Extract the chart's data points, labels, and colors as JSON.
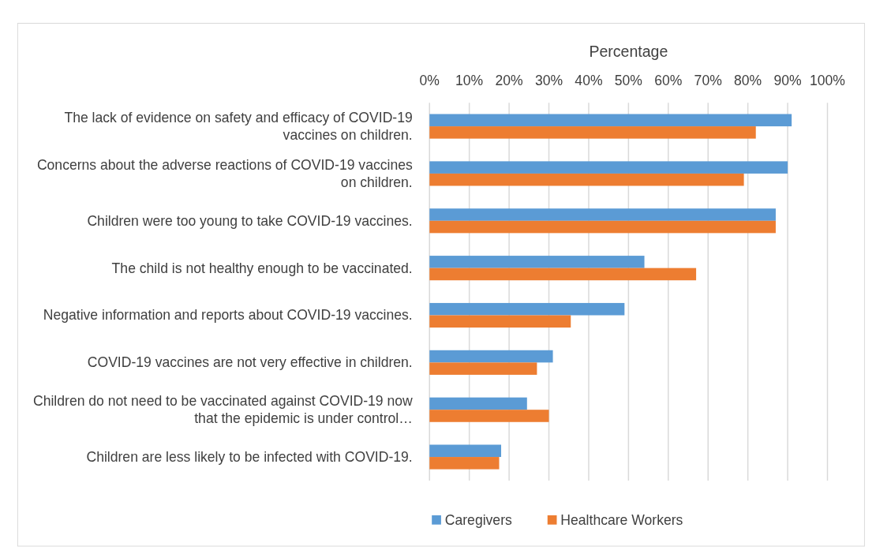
{
  "chart_data": {
    "type": "bar",
    "orientation": "horizontal",
    "xlabel": "Percentage",
    "categories": [
      "The lack of evidence on safety and efficacy of COVID-19 vaccines on children.",
      "Concerns about the adverse reactions of COVID-19 vaccines on children.",
      "Children were too young to take COVID-19 vaccines.",
      "The child is not healthy enough to be vaccinated.",
      "Negative information and reports about COVID-19 vaccines.",
      "COVID-19 vaccines are not very effective in children.",
      "Children do not need to be vaccinated against COVID-19 now that the epidemic is under control…",
      "Children are less likely to be infected with COVID-19."
    ],
    "series": [
      {
        "name": "Caregivers",
        "color": "#5b9bd5",
        "values": [
          91,
          90,
          87,
          54,
          49,
          31,
          24.5,
          18
        ]
      },
      {
        "name": "Healthcare Workers",
        "color": "#ed7d31",
        "values": [
          82,
          79,
          87,
          67,
          35.5,
          27,
          30,
          17.5
        ]
      }
    ],
    "xlim": [
      0,
      100
    ],
    "xticks": [
      {
        "value": 0,
        "label": "0%"
      },
      {
        "value": 10,
        "label": "10%"
      },
      {
        "value": 20,
        "label": "20%"
      },
      {
        "value": 30,
        "label": "30%"
      },
      {
        "value": 40,
        "label": "40%"
      },
      {
        "value": 50,
        "label": "50%"
      },
      {
        "value": 60,
        "label": "60%"
      },
      {
        "value": 70,
        "label": "70%"
      },
      {
        "value": 80,
        "label": "80%"
      },
      {
        "value": 90,
        "label": "90%"
      },
      {
        "value": 100,
        "label": "100%"
      }
    ],
    "grid": "x",
    "legend": "bottom"
  }
}
